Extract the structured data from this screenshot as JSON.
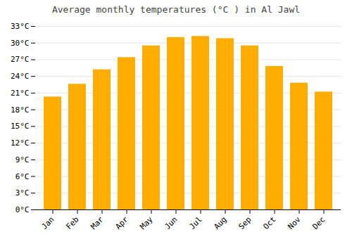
{
  "chart_data": {
    "type": "bar",
    "title": "Average monthly temperatures (°C ) in Al Jawl",
    "categories": [
      "Jan",
      "Feb",
      "Mar",
      "Apr",
      "May",
      "Jun",
      "Jul",
      "Aug",
      "Sep",
      "Oct",
      "Nov",
      "Dec"
    ],
    "values": [
      20.3,
      22.6,
      25.2,
      27.4,
      29.5,
      31.0,
      31.2,
      30.8,
      29.5,
      25.8,
      22.8,
      21.2
    ],
    "color": "#FFAD00",
    "ylim": [
      0,
      33
    ],
    "yticks": [
      {
        "value": 0,
        "label": "0°C"
      },
      {
        "value": 3,
        "label": "3°C"
      },
      {
        "value": 6,
        "label": "6°C"
      },
      {
        "value": 9,
        "label": "9°C"
      },
      {
        "value": 12,
        "label": "12°C"
      },
      {
        "value": 15,
        "label": "15°C"
      },
      {
        "value": 18,
        "label": "18°C"
      },
      {
        "value": 21,
        "label": "21°C"
      },
      {
        "value": 24,
        "label": "24°C"
      },
      {
        "value": 27,
        "label": "27°C"
      },
      {
        "value": 30,
        "label": "30°C"
      },
      {
        "value": 33,
        "label": "33°C"
      }
    ],
    "grid": true
  }
}
